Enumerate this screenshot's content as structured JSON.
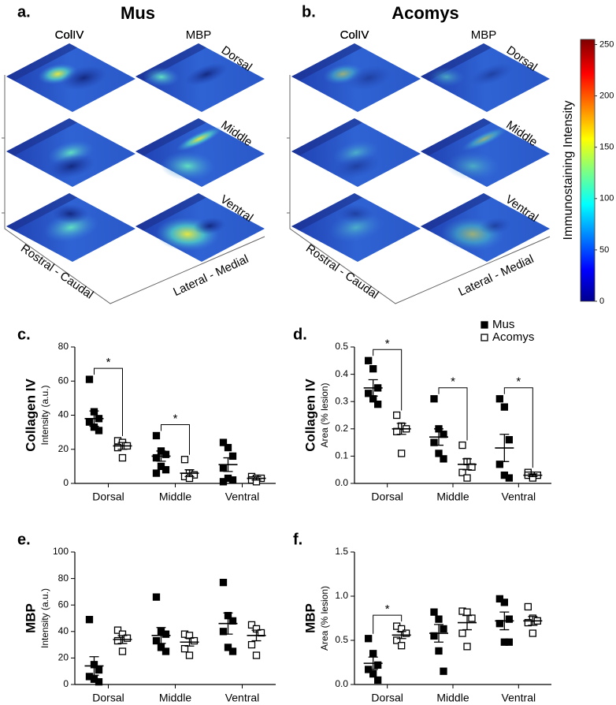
{
  "panels": {
    "a": {
      "label": "a.",
      "title": "Mus"
    },
    "b": {
      "label": "b.",
      "title": "Acomys"
    },
    "columns": [
      "ColIV",
      "MBP"
    ],
    "rows": [
      "Dorsal",
      "Middle",
      "Ventral"
    ],
    "axis_left": "Rostral - Caudal",
    "axis_right": "Lateral - Medial"
  },
  "colorbar": {
    "label": "Immunostaining Intensity",
    "lim": [
      0,
      255
    ],
    "ticks": [
      0,
      50,
      100,
      150,
      200,
      250
    ]
  },
  "chart_data": [
    {
      "type": "dotplot",
      "panel": "c.",
      "ylabel": "Collagen IV",
      "ylabel_sub": "Intensity (a.u.)",
      "categories": [
        "Dorsal",
        "Middle",
        "Ventral"
      ],
      "ylim": [
        0,
        80
      ],
      "yticks": [
        0,
        20,
        40,
        60,
        80
      ],
      "legend": false,
      "significance": [
        "*",
        "*",
        null
      ],
      "series": [
        {
          "name": "Mus",
          "color": "#000000",
          "filled": true,
          "points": [
            [
              61,
              42,
              38,
              36,
              33,
              31
            ],
            [
              28,
              19,
              17,
              15,
              10,
              8,
              6
            ],
            [
              24,
              21,
              16,
              9,
              3,
              2,
              1
            ]
          ],
          "mean": [
            38,
            16,
            11
          ],
          "sem": [
            4.5,
            3,
            4
          ]
        },
        {
          "name": "Acomys",
          "color": "#000000",
          "filled": false,
          "points": [
            [
              25,
              24,
              22,
              21,
              15
            ],
            [
              14,
              6,
              5,
              4,
              3
            ],
            [
              4,
              3,
              3,
              2,
              1
            ]
          ],
          "mean": [
            22,
            6,
            3
          ],
          "sem": [
            2,
            2,
            1
          ]
        }
      ]
    },
    {
      "type": "dotplot",
      "panel": "d.",
      "ylabel": "Collagen IV",
      "ylabel_sub": "Area (% lesion)",
      "categories": [
        "Dorsal",
        "Middle",
        "Ventral"
      ],
      "ylim": [
        0,
        0.5
      ],
      "yticks": [
        {
          "value": 0,
          "label": "0.0"
        },
        0.1,
        0.2,
        0.3,
        0.4,
        0.5
      ],
      "legend": true,
      "significance": [
        "*",
        "*",
        "*"
      ],
      "series": [
        {
          "name": "Mus",
          "color": "#000000",
          "filled": true,
          "points": [
            [
              0.45,
              0.42,
              0.35,
              0.33,
              0.31,
              0.29
            ],
            [
              0.31,
              0.2,
              0.18,
              0.15,
              0.11,
              0.09
            ],
            [
              0.31,
              0.28,
              0.16,
              0.07,
              0.03,
              0.02
            ]
          ],
          "mean": [
            0.35,
            0.17,
            0.13
          ],
          "sem": [
            0.03,
            0.03,
            0.05
          ]
        },
        {
          "name": "Acomys",
          "color": "#000000",
          "filled": false,
          "points": [
            [
              0.25,
              0.21,
              0.2,
              0.19,
              0.11
            ],
            [
              0.14,
              0.08,
              0.06,
              0.04,
              0.02
            ],
            [
              0.04,
              0.03,
              0.03,
              0.03,
              0.02
            ]
          ],
          "mean": [
            0.2,
            0.07,
            0.03
          ],
          "sem": [
            0.02,
            0.02,
            0.005
          ]
        }
      ]
    },
    {
      "type": "dotplot",
      "panel": "e.",
      "ylabel": "MBP",
      "ylabel_sub": "Intensity (a.u.)",
      "categories": [
        "Dorsal",
        "Middle",
        "Ventral"
      ],
      "ylim": [
        0,
        100
      ],
      "yticks": [
        0,
        20,
        40,
        60,
        80,
        100
      ],
      "legend": false,
      "significance": [
        null,
        null,
        null
      ],
      "series": [
        {
          "name": "Mus",
          "color": "#000000",
          "filled": true,
          "points": [
            [
              49,
              15,
              11,
              6,
              4,
              2
            ],
            [
              66,
              40,
              38,
              33,
              28,
              25
            ],
            [
              77,
              52,
              48,
              40,
              28,
              25
            ]
          ],
          "mean": [
            14,
            37,
            46
          ],
          "sem": [
            7,
            6,
            8
          ]
        },
        {
          "name": "Acomys",
          "color": "#000000",
          "filled": false,
          "points": [
            [
              41,
              38,
              35,
              33,
              25
            ],
            [
              38,
              37,
              33,
              27,
              22
            ],
            [
              45,
              42,
              39,
              30,
              22
            ]
          ],
          "mean": [
            34,
            32,
            37
          ],
          "sem": [
            3,
            3,
            4
          ]
        }
      ]
    },
    {
      "type": "dotplot",
      "panel": "f.",
      "ylabel": "MBP",
      "ylabel_sub": "Area (% lesion)",
      "categories": [
        "Dorsal",
        "Middle",
        "Ventral"
      ],
      "ylim": [
        0,
        1.5
      ],
      "yticks": [
        {
          "value": 0,
          "label": "0.0"
        },
        0.5,
        {
          "value": 1,
          "label": "1.0"
        },
        1.5
      ],
      "legend": false,
      "significance": [
        "*",
        null,
        null
      ],
      "series": [
        {
          "name": "Mus",
          "color": "#000000",
          "filled": true,
          "points": [
            [
              0.52,
              0.35,
              0.22,
              0.17,
              0.12,
              0.05
            ],
            [
              0.82,
              0.74,
              0.63,
              0.55,
              0.38,
              0.15
            ],
            [
              0.97,
              0.93,
              0.74,
              0.69,
              0.48,
              0.48
            ]
          ],
          "mean": [
            0.24,
            0.58,
            0.72
          ],
          "sem": [
            0.07,
            0.1,
            0.1
          ]
        },
        {
          "name": "Acomys",
          "color": "#000000",
          "filled": false,
          "points": [
            [
              0.66,
              0.63,
              0.58,
              0.5,
              0.44
            ],
            [
              0.83,
              0.82,
              0.75,
              0.58,
              0.43
            ],
            [
              0.88,
              0.75,
              0.72,
              0.7,
              0.58
            ]
          ],
          "mean": [
            0.56,
            0.7,
            0.72
          ],
          "sem": [
            0.04,
            0.08,
            0.05
          ]
        }
      ]
    }
  ]
}
